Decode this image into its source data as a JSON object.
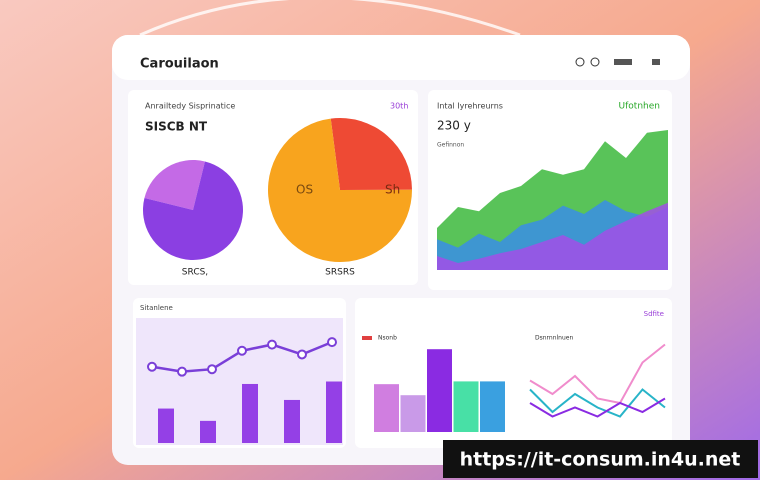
{
  "header": {
    "title": "Carouilaon"
  },
  "pies": {
    "title": "Anrailtedy Sisprinatice",
    "badge": "30th",
    "value": "SISCB NT",
    "small": {
      "caption": "SRCS,",
      "values": [
        25,
        75
      ],
      "colors": [
        "#c46ae6",
        "#8b3fe2"
      ]
    },
    "big": {
      "caption": "SRSRS",
      "slice_labels": [
        "Sh",
        "OS"
      ],
      "values": [
        27,
        73
      ],
      "colors": [
        "#ee4a34",
        "#f8a41e"
      ]
    }
  },
  "area": {
    "title": "Intal Iyrehreurns",
    "badge": "Ufotnhen",
    "value": "230 y",
    "subtitle": "Gefinnon",
    "ylim": [
      0,
      100
    ],
    "series": [
      {
        "color": "#3cb83c",
        "values": [
          30,
          45,
          42,
          55,
          60,
          72,
          68,
          72,
          92,
          80,
          98,
          100
        ]
      },
      {
        "color": "#3a8ee6",
        "values": [
          22,
          16,
          26,
          20,
          32,
          36,
          46,
          40,
          50,
          42,
          38,
          45
        ]
      },
      {
        "color": "#a24fe8",
        "values": [
          10,
          5,
          8,
          12,
          15,
          20,
          25,
          18,
          28,
          35,
          42,
          48
        ]
      }
    ]
  },
  "trend": {
    "title": "Sitanlene",
    "ylim": [
      0,
      100
    ],
    "line": {
      "color": "#7a3fd8",
      "values": [
        62,
        58,
        60,
        75,
        80,
        72,
        82
      ]
    },
    "bars": {
      "color": "#9440e6",
      "values": [
        28,
        18,
        48,
        35,
        50
      ]
    }
  },
  "columns": {
    "legend": "Nsonb",
    "ylim": [
      0,
      100
    ],
    "values": [
      52,
      40,
      90,
      55,
      55
    ],
    "colors": [
      "#d07ee0",
      "#c99ae8",
      "#8a2be2",
      "#48e0a6",
      "#3aa0e0"
    ]
  },
  "lines": {
    "title": "Dsnrnnlnuen",
    "badge": "Sdfite",
    "ylim": [
      0,
      100
    ],
    "series": [
      {
        "color": "#f08ccc",
        "values": [
          55,
          40,
          60,
          35,
          30,
          75,
          95
        ]
      },
      {
        "color": "#28b4c8",
        "values": [
          45,
          20,
          40,
          25,
          15,
          45,
          25
        ]
      },
      {
        "color": "#8a2be2",
        "values": [
          30,
          15,
          25,
          15,
          30,
          20,
          35
        ]
      }
    ]
  },
  "watermark": "https://it-consum.in4u.net"
}
